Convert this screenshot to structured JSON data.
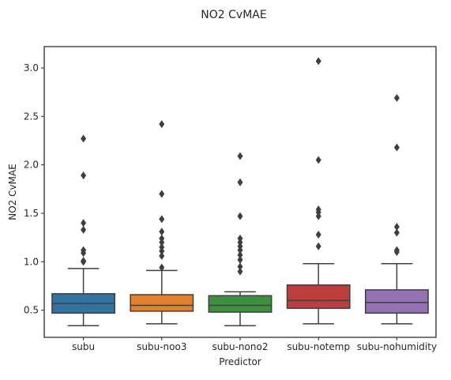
{
  "chart_data": {
    "type": "box",
    "title": "NO2 CvMAE",
    "xlabel": "Predictor",
    "ylabel": "NO2 CvMAE",
    "ylim": [
      0.22,
      3.22
    ],
    "yticks": [
      "0.5",
      "1.0",
      "1.5",
      "2.0",
      "2.5",
      "3.0"
    ],
    "ytick_values": [
      0.5,
      1.0,
      1.5,
      2.0,
      2.5,
      3.0
    ],
    "grid": false,
    "categories": [
      "subu",
      "subu-noo3",
      "subu-nono2",
      "subu-notemp",
      "subu-nohumidity"
    ],
    "colors": [
      "#3274a1",
      "#e1812c",
      "#3a923a",
      "#c03d3e",
      "#9372b2"
    ],
    "boxes": [
      {
        "whisker_low": 0.34,
        "q1": 0.47,
        "median": 0.57,
        "q3": 0.67,
        "whisker_high": 0.93,
        "outliers": [
          1.0,
          1.01,
          1.09,
          1.12,
          1.33,
          1.4,
          1.89,
          2.27
        ]
      },
      {
        "whisker_low": 0.36,
        "q1": 0.49,
        "median": 0.55,
        "q3": 0.66,
        "whisker_high": 0.91,
        "outliers": [
          0.94,
          1.06,
          1.11,
          1.15,
          1.2,
          1.24,
          1.31,
          1.44,
          1.7,
          2.42
        ]
      },
      {
        "whisker_low": 0.34,
        "q1": 0.48,
        "median": 0.55,
        "q3": 0.65,
        "whisker_high": 0.69,
        "outliers": [
          0.9,
          0.95,
          1.02,
          1.07,
          1.12,
          1.16,
          1.2,
          1.24,
          1.47,
          1.82,
          2.09
        ]
      },
      {
        "whisker_low": 0.36,
        "q1": 0.52,
        "median": 0.6,
        "q3": 0.76,
        "whisker_high": 0.98,
        "outliers": [
          1.16,
          1.28,
          1.47,
          1.51,
          1.54,
          2.05,
          3.07
        ]
      },
      {
        "whisker_low": 0.36,
        "q1": 0.47,
        "median": 0.58,
        "q3": 0.71,
        "whisker_high": 0.98,
        "outliers": [
          1.1,
          1.12,
          1.3,
          1.36,
          2.18,
          2.69
        ]
      }
    ]
  }
}
